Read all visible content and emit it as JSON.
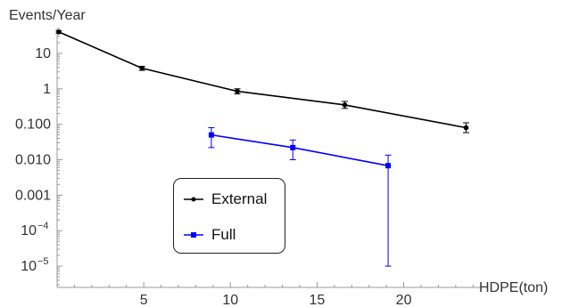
{
  "chart_data": {
    "type": "line",
    "title": "",
    "xlabel": "HDPE(ton)",
    "ylabel": "Events/Year",
    "xlim": [
      0,
      24.5
    ],
    "ylim_log10": [
      -5.6,
      1.7
    ],
    "y_scale": "log",
    "grid": false,
    "legend_placement": "lower-center",
    "x_ticks": [
      {
        "value": 5,
        "label": "5"
      },
      {
        "value": 10,
        "label": "10"
      },
      {
        "value": 15,
        "label": "15"
      },
      {
        "value": 20,
        "label": "20"
      }
    ],
    "y_ticks": [
      {
        "value": 10,
        "label": "10"
      },
      {
        "value": 1,
        "label": "1"
      },
      {
        "value": 0.1,
        "label": "0.100"
      },
      {
        "value": 0.01,
        "label": "0.010"
      },
      {
        "value": 0.001,
        "label": "0.001"
      },
      {
        "value": 0.0001,
        "label": "10",
        "exponent": "−4"
      },
      {
        "value": 1e-05,
        "label": "10",
        "exponent": "−5"
      }
    ],
    "series": [
      {
        "name": "External",
        "color": "#000000",
        "marker": "circle",
        "points": [
          {
            "x": 0.1,
            "y": 40,
            "err_low": 37,
            "err_high": 43
          },
          {
            "x": 4.9,
            "y": 3.8,
            "err_low": 3.3,
            "err_high": 4.3
          },
          {
            "x": 10.4,
            "y": 0.85,
            "err_low": 0.72,
            "err_high": 1.0
          },
          {
            "x": 16.6,
            "y": 0.35,
            "err_low": 0.28,
            "err_high": 0.44
          },
          {
            "x": 23.6,
            "y": 0.08,
            "err_low": 0.058,
            "err_high": 0.11
          }
        ]
      },
      {
        "name": "Full",
        "color": "#0000ff",
        "marker": "square",
        "points": [
          {
            "x": 8.9,
            "y": 0.05,
            "err_low": 0.022,
            "err_high": 0.08
          },
          {
            "x": 13.6,
            "y": 0.022,
            "err_low": 0.01,
            "err_high": 0.036
          },
          {
            "x": 19.1,
            "y": 0.0068,
            "err_low": 1e-05,
            "err_high": 0.0135
          }
        ]
      }
    ]
  }
}
